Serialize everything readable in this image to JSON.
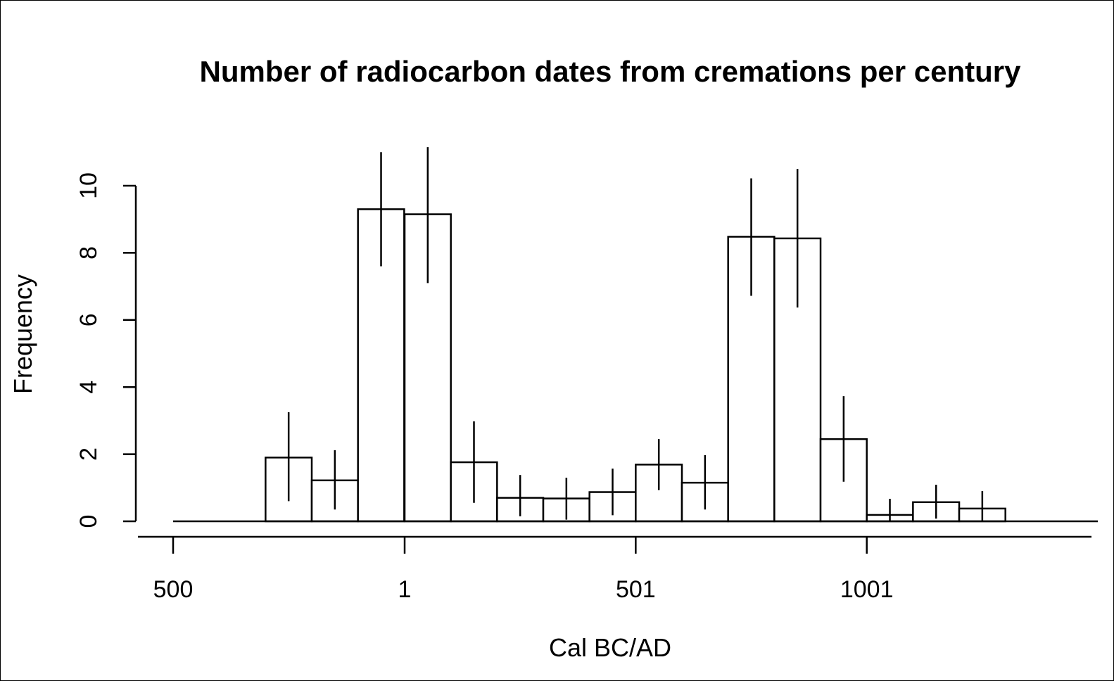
{
  "chart_data": {
    "type": "bar",
    "title": "Number of radiocarbon dates from cremations per century",
    "xlabel": "Cal  BC/AD",
    "ylabel": "Frequency",
    "x_ticks": [
      {
        "value": -500,
        "label": "500"
      },
      {
        "value": 1,
        "label": "1"
      },
      {
        "value": 501,
        "label": "501"
      },
      {
        "value": 1001,
        "label": "1001"
      }
    ],
    "y_ticks": [
      {
        "value": 0,
        "label": "0"
      },
      {
        "value": 2,
        "label": "2"
      },
      {
        "value": 4,
        "label": "4"
      },
      {
        "value": 6,
        "label": "6"
      },
      {
        "value": 8,
        "label": "8"
      },
      {
        "value": 10,
        "label": "10"
      }
    ],
    "xlim": [
      -500,
      1401
    ],
    "ylim": [
      0,
      10
    ],
    "bin_width": 100,
    "bins": [
      {
        "start": -500,
        "value": 0
      },
      {
        "start": -400,
        "value": 0
      },
      {
        "start": -300,
        "value": 1.9,
        "err_low": 0.6,
        "err_high": 3.25
      },
      {
        "start": -200,
        "value": 1.22,
        "err_low": 0.35,
        "err_high": 2.12
      },
      {
        "start": -100,
        "value": 9.3,
        "err_low": 7.6,
        "err_high": 11.0
      },
      {
        "start": 1,
        "value": 9.15,
        "err_low": 7.1,
        "err_high": 11.15
      },
      {
        "start": 101,
        "value": 1.76,
        "err_low": 0.55,
        "err_high": 2.98
      },
      {
        "start": 201,
        "value": 0.7,
        "err_low": 0.15,
        "err_high": 1.38
      },
      {
        "start": 301,
        "value": 0.68,
        "err_low": 0.05,
        "err_high": 1.3
      },
      {
        "start": 401,
        "value": 0.87,
        "err_low": 0.18,
        "err_high": 1.57
      },
      {
        "start": 501,
        "value": 1.69,
        "err_low": 0.93,
        "err_high": 2.45
      },
      {
        "start": 601,
        "value": 1.15,
        "err_low": 0.35,
        "err_high": 1.97
      },
      {
        "start": 701,
        "value": 8.48,
        "err_low": 6.72,
        "err_high": 10.22
      },
      {
        "start": 801,
        "value": 8.43,
        "err_low": 6.37,
        "err_high": 10.5
      },
      {
        "start": 901,
        "value": 2.45,
        "err_low": 1.18,
        "err_high": 3.73
      },
      {
        "start": 1001,
        "value": 0.19,
        "err_low": 0.0,
        "err_high": 0.67
      },
      {
        "start": 1101,
        "value": 0.57,
        "err_low": 0.08,
        "err_high": 1.09
      },
      {
        "start": 1201,
        "value": 0.38,
        "err_low": 0.0,
        "err_high": 0.9
      },
      {
        "start": 1301,
        "value": 0
      },
      {
        "start": 1401,
        "value": 0
      }
    ],
    "grid": false,
    "legend": "none"
  }
}
